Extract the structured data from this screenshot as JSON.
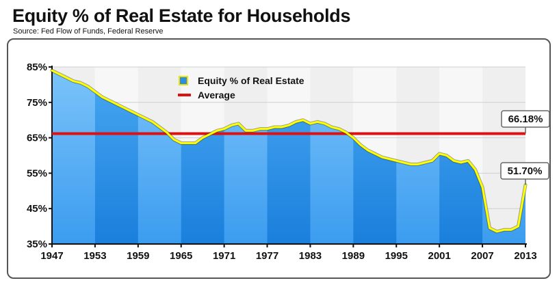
{
  "header": {
    "title": "Equity % of Real Estate for Households",
    "source": "Source: Fed Flow of Funds, Federal Reserve"
  },
  "chart_data": {
    "type": "area",
    "title": "Equity % of Real Estate for Households",
    "subtitle": "Source: Fed Flow of Funds, Federal Reserve",
    "xlabel": "",
    "ylabel": "",
    "xlim": [
      1947,
      2013
    ],
    "ylim": [
      35,
      85
    ],
    "x_ticks": [
      "1947",
      "1953",
      "1959",
      "1965",
      "1971",
      "1977",
      "1983",
      "1989",
      "1995",
      "2001",
      "2007",
      "2013"
    ],
    "y_ticks": [
      "85%",
      "75%",
      "65%",
      "55%",
      "45%",
      "35%"
    ],
    "grid": true,
    "legend_position": "top-center",
    "series": [
      {
        "name": "Equity % of Real Estate",
        "type": "area",
        "color": "#3aa0ee",
        "line_color": "#ffff00",
        "x": [
          1947,
          1948,
          1949,
          1950,
          1951,
          1952,
          1953,
          1954,
          1955,
          1956,
          1957,
          1958,
          1959,
          1960,
          1961,
          1962,
          1963,
          1964,
          1965,
          1966,
          1967,
          1968,
          1969,
          1970,
          1971,
          1972,
          1973,
          1974,
          1975,
          1976,
          1977,
          1978,
          1979,
          1980,
          1981,
          1982,
          1983,
          1984,
          1985,
          1986,
          1987,
          1988,
          1989,
          1990,
          1991,
          1992,
          1993,
          1994,
          1995,
          1996,
          1997,
          1998,
          1999,
          2000,
          2001,
          2002,
          2003,
          2004,
          2005,
          2006,
          2007,
          2008,
          2009,
          2010,
          2011,
          2012,
          2013
        ],
        "values": [
          84,
          83,
          82,
          81,
          80.5,
          79.5,
          78,
          76.5,
          75.5,
          74.5,
          73.5,
          72.5,
          71.5,
          70.5,
          69.5,
          68,
          66.5,
          64.5,
          63.5,
          63.5,
          63.5,
          65,
          66,
          67,
          67.5,
          68.5,
          69,
          67,
          67,
          67.5,
          67.5,
          68,
          68,
          68.5,
          69.5,
          70,
          69,
          69.5,
          69,
          68,
          67.5,
          66.5,
          65,
          63,
          61.5,
          60.5,
          59.5,
          59,
          58.5,
          58,
          57.5,
          57.5,
          58,
          58.5,
          60.5,
          60,
          58.5,
          58,
          58.5,
          56,
          51,
          39.5,
          38.5,
          39,
          39,
          40,
          51.7
        ]
      },
      {
        "name": "Average",
        "type": "line",
        "color": "#dd1111",
        "value": 66.18
      }
    ],
    "annotations": [
      {
        "text": "66.18%",
        "x": 2013,
        "y": 66.18
      },
      {
        "text": "51.70%",
        "x": 2013,
        "y": 51.7
      }
    ]
  },
  "legend": {
    "items": [
      {
        "label": "Equity % of Real Estate",
        "color": "#2e8fe0"
      },
      {
        "label": "Average",
        "color": "#dd1111"
      }
    ]
  }
}
